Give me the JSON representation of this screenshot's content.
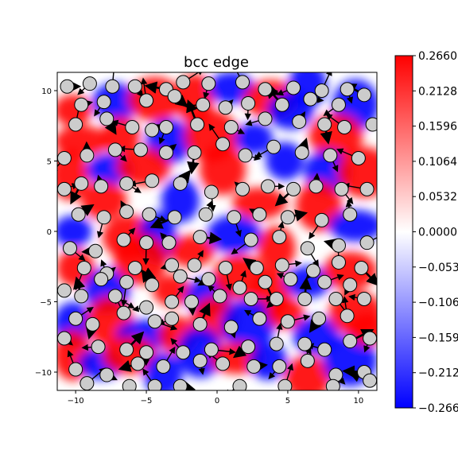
{
  "chart_data": {
    "type": "heatmap",
    "title": "bcc edge",
    "xlabel": "",
    "ylabel": "",
    "xlim": [
      -11.3,
      11.3
    ],
    "ylim": [
      -11.3,
      11.3
    ],
    "x_ticks": [
      -10,
      -5,
      0,
      5,
      10
    ],
    "y_ticks": [
      10,
      5,
      0,
      -5,
      -10
    ],
    "colormap": "bwr",
    "clim": [
      -0.266,
      0.266
    ],
    "colorbar_ticks": [
      0.266,
      0.2128,
      0.1596,
      0.1064,
      0.0532,
      0.0,
      -0.0532,
      -0.1064,
      -0.1596,
      -0.2128,
      -0.266
    ],
    "colorbar_tick_labels": [
      "0.2660",
      "0.2128",
      "0.1596",
      "0.1064",
      "0.0532",
      "0.0000",
      "−0.0532",
      "−0.1064",
      "−0.1596",
      "−0.2128",
      "−0.2660"
    ],
    "colors": {
      "positive": "#ff0000",
      "zero": "#ffffff",
      "negative": "#0000ff",
      "atom_fill": "#cccccc",
      "arrow": "#000000"
    },
    "atoms": [
      [
        -10.6,
        10.3
      ],
      [
        -9.0,
        10.5
      ],
      [
        -7.4,
        10.3
      ],
      [
        -5.8,
        10.3
      ],
      [
        -3.6,
        10.1
      ],
      [
        -2.4,
        10.6
      ],
      [
        -0.6,
        10.5
      ],
      [
        1.8,
        10.6
      ],
      [
        3.4,
        10.1
      ],
      [
        5.4,
        10.2
      ],
      [
        7.4,
        10.0
      ],
      [
        9.2,
        10.1
      ],
      [
        10.4,
        9.7
      ],
      [
        -9.6,
        9.0
      ],
      [
        -8.0,
        9.2
      ],
      [
        -5.0,
        9.3
      ],
      [
        -3.0,
        9.6
      ],
      [
        -1.0,
        9.0
      ],
      [
        0.6,
        8.8
      ],
      [
        2.2,
        9.1
      ],
      [
        4.6,
        9.0
      ],
      [
        6.6,
        9.4
      ],
      [
        8.6,
        9.0
      ],
      [
        -10.0,
        7.6
      ],
      [
        -7.8,
        8.0
      ],
      [
        -6.0,
        7.4
      ],
      [
        -4.6,
        7.2
      ],
      [
        -3.6,
        7.4
      ],
      [
        -1.4,
        7.6
      ],
      [
        1.0,
        7.4
      ],
      [
        3.4,
        8.0
      ],
      [
        5.8,
        7.8
      ],
      [
        7.6,
        7.6
      ],
      [
        9.0,
        7.4
      ],
      [
        11.0,
        7.6
      ],
      [
        -10.8,
        5.2
      ],
      [
        -9.2,
        5.4
      ],
      [
        -7.2,
        5.8
      ],
      [
        -5.4,
        5.8
      ],
      [
        -3.6,
        5.6
      ],
      [
        -1.6,
        5.6
      ],
      [
        0.4,
        6.2
      ],
      [
        2.0,
        5.4
      ],
      [
        4.0,
        6.0
      ],
      [
        6.0,
        5.6
      ],
      [
        8.0,
        5.4
      ],
      [
        10.0,
        5.2
      ],
      [
        -10.8,
        3.0
      ],
      [
        -9.6,
        3.4
      ],
      [
        -8.2,
        3.2
      ],
      [
        -6.4,
        3.4
      ],
      [
        -4.6,
        3.6
      ],
      [
        -2.6,
        3.4
      ],
      [
        -0.4,
        2.8
      ],
      [
        1.8,
        3.0
      ],
      [
        3.6,
        3.2
      ],
      [
        5.4,
        3.0
      ],
      [
        7.0,
        3.2
      ],
      [
        8.8,
        3.0
      ],
      [
        10.6,
        3.0
      ],
      [
        -9.8,
        1.2
      ],
      [
        -8.0,
        1.0
      ],
      [
        -6.4,
        1.4
      ],
      [
        -4.8,
        1.2
      ],
      [
        -3.0,
        1.0
      ],
      [
        -0.8,
        1.2
      ],
      [
        1.2,
        1.0
      ],
      [
        3.0,
        1.2
      ],
      [
        5.0,
        1.0
      ],
      [
        7.4,
        0.8
      ],
      [
        9.4,
        1.2
      ],
      [
        -10.4,
        -1.2
      ],
      [
        -8.6,
        -1.4
      ],
      [
        -6.6,
        -0.6
      ],
      [
        -5.0,
        -0.8
      ],
      [
        -3.4,
        -0.8
      ],
      [
        -1.2,
        -0.4
      ],
      [
        2.4,
        -0.6
      ],
      [
        4.4,
        -0.4
      ],
      [
        6.4,
        -1.2
      ],
      [
        8.6,
        -1.0
      ],
      [
        10.6,
        -0.8
      ],
      [
        -9.4,
        -2.6
      ],
      [
        -7.8,
        -3.0
      ],
      [
        -5.8,
        -2.6
      ],
      [
        -3.2,
        -2.4
      ],
      [
        -1.6,
        -2.4
      ],
      [
        0.6,
        -2.6
      ],
      [
        2.8,
        -2.6
      ],
      [
        4.6,
        -2.4
      ],
      [
        6.8,
        -2.8
      ],
      [
        8.6,
        -2.2
      ],
      [
        10.2,
        -2.6
      ],
      [
        -10.8,
        -4.2
      ],
      [
        -8.2,
        -3.4
      ],
      [
        -6.4,
        -3.6
      ],
      [
        -4.6,
        -3.8
      ],
      [
        -2.6,
        -3.2
      ],
      [
        -0.6,
        -3.4
      ],
      [
        1.6,
        -4.0
      ],
      [
        3.4,
        -3.6
      ],
      [
        5.2,
        -3.4
      ],
      [
        7.6,
        -3.6
      ],
      [
        9.4,
        -3.8
      ],
      [
        -9.6,
        -4.6
      ],
      [
        -7.2,
        -4.6
      ],
      [
        -5.0,
        -5.4
      ],
      [
        -3.2,
        -5.0
      ],
      [
        -1.8,
        -5.0
      ],
      [
        0.2,
        -4.6
      ],
      [
        2.4,
        -4.8
      ],
      [
        4.2,
        -4.8
      ],
      [
        6.2,
        -4.8
      ],
      [
        8.4,
        -4.8
      ],
      [
        10.4,
        -4.8
      ],
      [
        -10.0,
        -6.2
      ],
      [
        -8.8,
        -6.6
      ],
      [
        -6.6,
        -5.8
      ],
      [
        -4.4,
        -6.4
      ],
      [
        -3.2,
        -6.2
      ],
      [
        -1.2,
        -6.6
      ],
      [
        1.0,
        -6.8
      ],
      [
        3.0,
        -6.2
      ],
      [
        5.0,
        -6.4
      ],
      [
        7.2,
        -6.2
      ],
      [
        9.2,
        -6.0
      ],
      [
        -10.8,
        -7.6
      ],
      [
        -8.4,
        -8.2
      ],
      [
        -6.4,
        -8.4
      ],
      [
        -5.0,
        -8.6
      ],
      [
        -2.4,
        -8.6
      ],
      [
        -0.4,
        -8.4
      ],
      [
        2.2,
        -8.2
      ],
      [
        4.2,
        -8.0
      ],
      [
        6.2,
        -8.0
      ],
      [
        7.6,
        -8.4
      ],
      [
        9.4,
        -7.8
      ],
      [
        10.8,
        -7.6
      ],
      [
        -10.0,
        -9.8
      ],
      [
        -7.8,
        -10.2
      ],
      [
        -5.6,
        -9.4
      ],
      [
        -3.8,
        -9.6
      ],
      [
        -1.2,
        -9.2
      ],
      [
        0.4,
        -9.4
      ],
      [
        2.6,
        -9.6
      ],
      [
        4.4,
        -9.6
      ],
      [
        6.4,
        -9.2
      ],
      [
        8.4,
        -10.2
      ],
      [
        10.4,
        -10.0
      ],
      [
        -9.2,
        -10.8
      ],
      [
        -6.2,
        -11.0
      ],
      [
        -4.4,
        -11.0
      ],
      [
        -2.6,
        -11.0
      ],
      [
        1.6,
        -11.0
      ],
      [
        4.8,
        -11.0
      ],
      [
        8.2,
        -11.0
      ],
      [
        10.8,
        -10.6
      ]
    ],
    "regions": [
      [
        -10.2,
        8.6,
        1
      ],
      [
        -7.2,
        9.2,
        -1
      ],
      [
        -4.4,
        9.4,
        1
      ],
      [
        -1.6,
        9.4,
        1
      ],
      [
        1.0,
        10.2,
        -1
      ],
      [
        3.8,
        9.4,
        1
      ],
      [
        6.4,
        10.4,
        -1
      ],
      [
        9.8,
        9.0,
        -1
      ],
      [
        -9.6,
        6.4,
        1
      ],
      [
        -6.8,
        6.8,
        1
      ],
      [
        -3.4,
        6.4,
        -1
      ],
      [
        -0.4,
        6.8,
        1
      ],
      [
        2.6,
        6.6,
        -1
      ],
      [
        5.2,
        8.6,
        -1
      ],
      [
        8.4,
        6.8,
        1
      ],
      [
        -10.4,
        4.0,
        1
      ],
      [
        -7.6,
        4.4,
        -1
      ],
      [
        -5.2,
        4.6,
        1
      ],
      [
        -2.6,
        2.2,
        -1
      ],
      [
        0.4,
        4.4,
        1
      ],
      [
        3.0,
        2.0,
        1
      ],
      [
        4.8,
        5.0,
        -1
      ],
      [
        7.8,
        4.2,
        -1
      ],
      [
        10.4,
        4.2,
        1
      ],
      [
        -10.2,
        0.0,
        -1
      ],
      [
        -8.0,
        2.2,
        1
      ],
      [
        -6.2,
        -0.4,
        1
      ],
      [
        -4.2,
        -0.4,
        -1
      ],
      [
        -1.8,
        -1.4,
        1
      ],
      [
        1.2,
        -0.2,
        -1
      ],
      [
        4.2,
        -1.2,
        1
      ],
      [
        7.2,
        1.8,
        1
      ],
      [
        9.8,
        0.4,
        -1
      ],
      [
        -10.0,
        -2.6,
        1
      ],
      [
        -7.8,
        -4.2,
        -1
      ],
      [
        -5.4,
        -2.0,
        1
      ],
      [
        -3.2,
        -4.2,
        1
      ],
      [
        -0.6,
        -4.6,
        -1
      ],
      [
        1.6,
        -3.2,
        1
      ],
      [
        3.8,
        -4.4,
        1
      ],
      [
        6.4,
        -3.6,
        -1
      ],
      [
        9.4,
        -2.8,
        1
      ],
      [
        -10.2,
        -6.6,
        -1
      ],
      [
        -7.6,
        -6.4,
        1
      ],
      [
        -5.2,
        -7.4,
        -1
      ],
      [
        -2.8,
        -7.4,
        1
      ],
      [
        -0.2,
        -6.2,
        1
      ],
      [
        2.2,
        -6.6,
        -1
      ],
      [
        4.8,
        -5.8,
        1
      ],
      [
        7.0,
        -7.4,
        -1
      ],
      [
        9.8,
        -5.8,
        1
      ],
      [
        -10.2,
        -8.8,
        1
      ],
      [
        -8.2,
        -9.4,
        -1
      ],
      [
        -6.2,
        -8.8,
        1
      ],
      [
        -3.8,
        -10.2,
        -1
      ],
      [
        -1.2,
        -8.6,
        -1
      ],
      [
        1.4,
        -9.0,
        1
      ],
      [
        3.6,
        -9.2,
        -1
      ],
      [
        6.4,
        -10.4,
        1
      ],
      [
        9.4,
        -9.2,
        -1
      ],
      [
        10.6,
        -7.0,
        1
      ]
    ]
  }
}
